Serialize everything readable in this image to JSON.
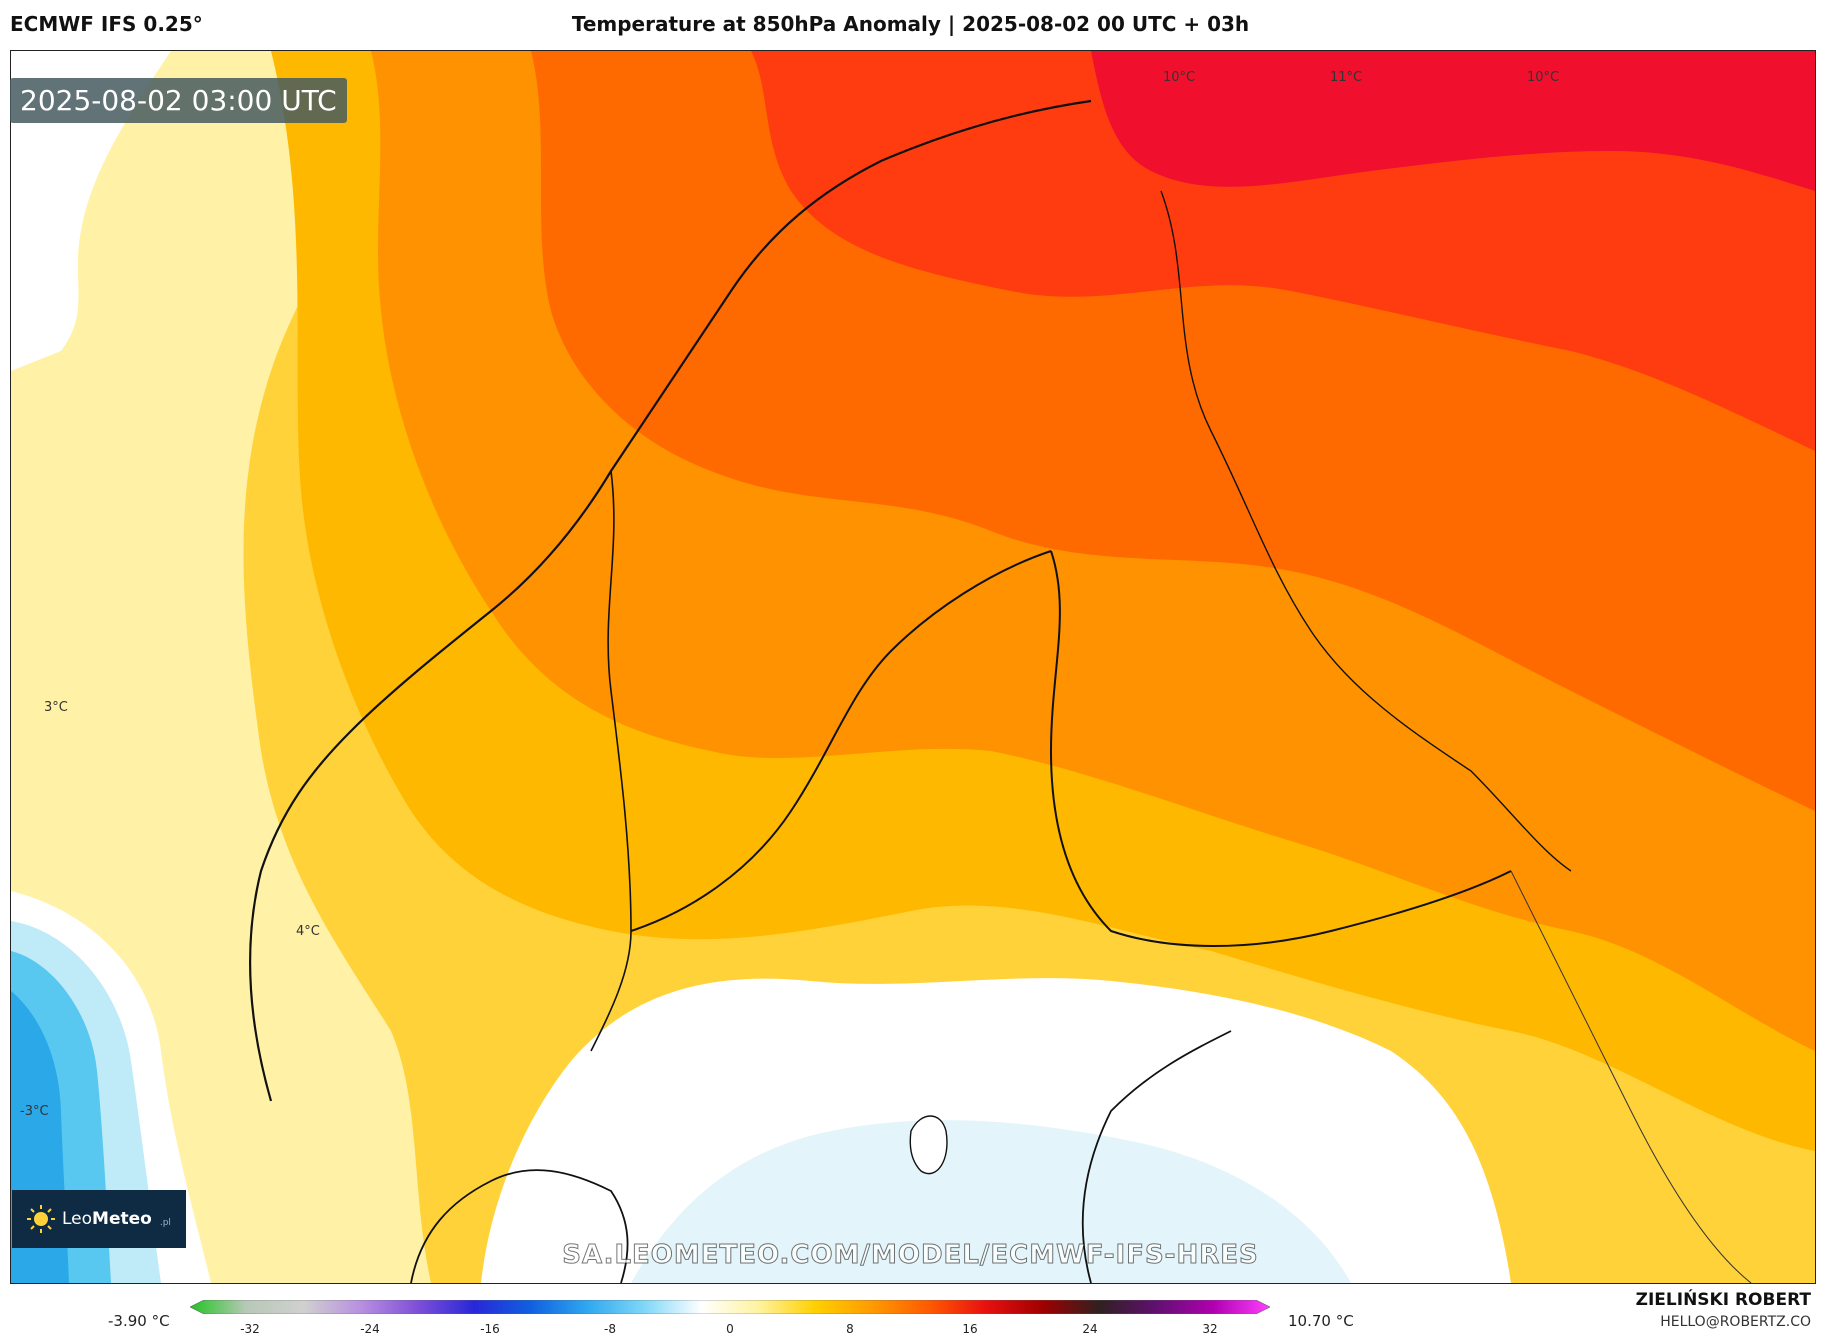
{
  "header": {
    "model": "ECMWF IFS 0.25°",
    "title": "Temperature at 850hPa Anomaly | 2025-08-02 00 UTC + 03h"
  },
  "map": {
    "timestamp": "2025-08-02 03:00 UTC",
    "contour_labels": [
      "10°C",
      "11°C",
      "10°C",
      "3°C",
      "4°C",
      "-3°C"
    ],
    "watermark_url": "SA.LEOMETEO.COM/MODEL/ECMWF-IFS-HRES"
  },
  "logo": {
    "name_part1": "Leo",
    "name_part2": "Meteo",
    "suffix": ".pl"
  },
  "legend": {
    "min_value": "-3.90 °C",
    "max_value": "10.70 °C",
    "ticks": [
      "-32",
      "-24",
      "-16",
      "-8",
      "0",
      "8",
      "16",
      "24",
      "32"
    ],
    "tick_values": [
      -32,
      -24,
      -16,
      -8,
      0,
      8,
      16,
      24,
      32
    ],
    "range": [
      -36,
      36
    ],
    "colors": [
      "#22c422",
      "#b8c8b8",
      "#d0d0d0",
      "#b890e0",
      "#7f4fd8",
      "#2828d8",
      "#1060e0",
      "#30a8f0",
      "#80d8f8",
      "#ffffff",
      "#fff3a0",
      "#ffd000",
      "#ff9a00",
      "#ff5a00",
      "#e81010",
      "#a00000",
      "#302020",
      "#601070",
      "#b000b0",
      "#ff40ff"
    ]
  },
  "footer": {
    "author": "ZIELIŃSKI ROBERT",
    "email": "HELLO@ROBERTZ.CO"
  }
}
